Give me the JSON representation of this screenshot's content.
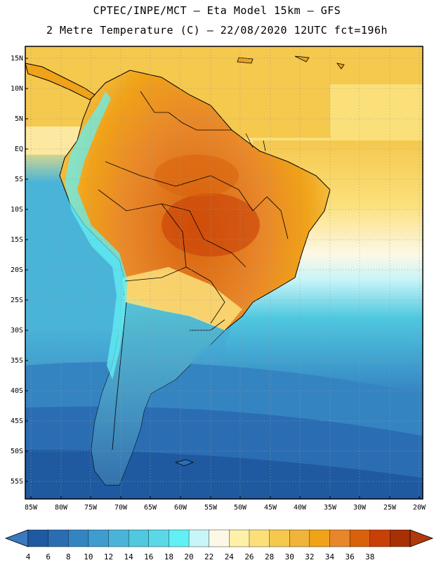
{
  "header": {
    "line1": "CPTEC/INPE/MCT –  Eta Model 15km – GFS",
    "line2": "2 Metre Temperature (C) – 22/08/2020 12UTC fct=196h"
  },
  "map": {
    "lat_labels": [
      "15N",
      "10N",
      "5N",
      "EQ",
      "5S",
      "10S",
      "15S",
      "20S",
      "25S",
      "30S",
      "35S",
      "40S",
      "45S",
      "50S",
      "55S"
    ],
    "lon_labels": [
      "85W",
      "80W",
      "75W",
      "70W",
      "65W",
      "60W",
      "55W",
      "50W",
      "45W",
      "40W",
      "35W",
      "30W",
      "25W",
      "20W"
    ]
  },
  "colorbar": {
    "labels": [
      "4",
      "6",
      "8",
      "10",
      "12",
      "14",
      "16",
      "18",
      "20",
      "22",
      "24",
      "26",
      "28",
      "30",
      "32",
      "34",
      "36",
      "38"
    ],
    "colors": [
      "#1f5aa0",
      "#2a6db3",
      "#3584c2",
      "#3f9cce",
      "#4ab4d8",
      "#4fc8e0",
      "#5ad8e8",
      "#63f0f5",
      "#c8f5f8",
      "#fdf8e6",
      "#fff0a8",
      "#fbe07a",
      "#f5c84e",
      "#f0b43a",
      "#f0a218",
      "#e8862a",
      "#d8620c",
      "#c84008",
      "#a83004"
    ],
    "left_color": "#3a78c0",
    "right_color": "#b03a0c"
  },
  "colors": {
    "ocean_south": "#2e64ad",
    "ocean_mid": "#3a8ccb",
    "ocean_cyan": "#4ab8dc",
    "ocean_warm": "#fce8a0",
    "land_hot": "#d8620c",
    "land_warm": "#f0a218",
    "land_mild": "#fbe07a"
  }
}
